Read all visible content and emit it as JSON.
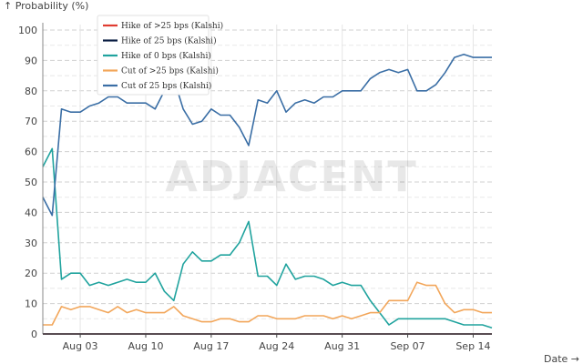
{
  "watermark": "ADJACENT",
  "chart_data": {
    "type": "line",
    "ylabel": "↑ Probability (%)",
    "xlabel": "Date →",
    "ylim": [
      0,
      100
    ],
    "y_ticks": [
      0,
      10,
      20,
      30,
      40,
      50,
      60,
      70,
      80,
      90,
      100
    ],
    "x_ticks": [
      "Aug 03",
      "Aug 10",
      "Aug 17",
      "Aug 24",
      "Aug 31",
      "Sep 07",
      "Sep 14"
    ],
    "x_start": "Jul 30",
    "x_end": "Sep 15",
    "grid": "dashed",
    "legend_position": "top-left",
    "series": [
      {
        "name": "Hike of >25 bps (Kalshi)",
        "color": "#e03c31",
        "values": [
          0,
          0,
          0,
          0,
          0,
          0,
          0,
          0,
          0,
          0,
          0,
          0,
          0,
          0,
          0,
          0,
          0,
          0,
          0,
          0,
          0,
          0,
          0,
          0,
          0,
          0,
          0,
          0,
          0,
          0,
          0,
          0,
          0,
          0,
          0,
          0,
          0,
          0,
          0,
          0,
          0,
          0,
          0,
          0,
          0,
          0,
          0,
          0,
          0
        ]
      },
      {
        "name": "Hike of 25 bps (Kalshi)",
        "color": "#0b1f44",
        "values": [
          0,
          0,
          0,
          0,
          0,
          0,
          0,
          0,
          0,
          0,
          0,
          0,
          0,
          0,
          0,
          0,
          0,
          0,
          0,
          0,
          0,
          0,
          0,
          0,
          0,
          0,
          0,
          0,
          0,
          0,
          0,
          0,
          0,
          0,
          0,
          0,
          0,
          0,
          0,
          0,
          0,
          0,
          0,
          0,
          0,
          0,
          0,
          0,
          0
        ]
      },
      {
        "name": "Hike of 0 bps (Kalshi)",
        "color": "#20a39e",
        "values": [
          55,
          61,
          18,
          20,
          20,
          16,
          17,
          16,
          17,
          18,
          17,
          17,
          20,
          14,
          11,
          23,
          27,
          24,
          24,
          26,
          26,
          30,
          37,
          19,
          19,
          16,
          23,
          18,
          19,
          19,
          18,
          16,
          17,
          16,
          16,
          11,
          7,
          3,
          5,
          5,
          5,
          5,
          5,
          5,
          4,
          3,
          3,
          3,
          2
        ]
      },
      {
        "name": "Cut of >25 bps (Kalshi)",
        "color": "#f2a65a",
        "values": [
          3,
          3,
          9,
          8,
          9,
          9,
          8,
          7,
          9,
          7,
          8,
          7,
          7,
          7,
          9,
          6,
          5,
          4,
          4,
          5,
          5,
          4,
          4,
          6,
          6,
          5,
          5,
          5,
          6,
          6,
          6,
          5,
          6,
          5,
          6,
          7,
          7,
          11,
          11,
          11,
          17,
          16,
          16,
          10,
          7,
          8,
          8,
          7,
          7
        ]
      },
      {
        "name": "Cut of 25 bps (Kalshi)",
        "color": "#3a6ea5",
        "values": [
          45,
          39,
          74,
          73,
          73,
          75,
          76,
          78,
          78,
          76,
          76,
          76,
          74,
          80,
          84,
          74,
          69,
          70,
          74,
          72,
          72,
          68,
          62,
          77,
          76,
          80,
          73,
          76,
          77,
          76,
          78,
          78,
          80,
          80,
          80,
          84,
          86,
          87,
          86,
          87,
          80,
          80,
          82,
          86,
          91,
          92,
          91,
          91,
          91
        ]
      }
    ]
  }
}
